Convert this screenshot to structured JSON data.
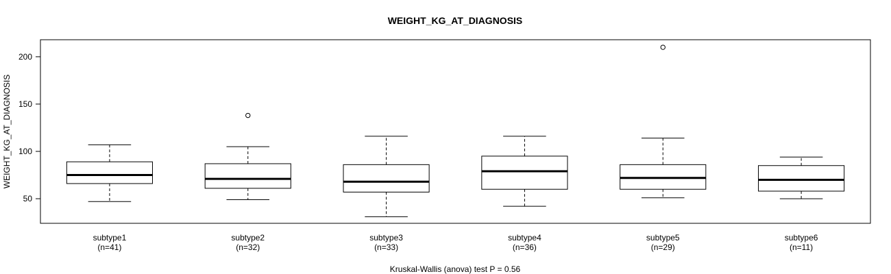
{
  "chart_data": {
    "type": "boxplot",
    "title": "WEIGHT_KG_AT_DIAGNOSIS",
    "ylabel": "WEIGHT_KG_AT_DIAGNOSIS",
    "xlabel": "Kruskal-Wallis (anova) test P = 0.56",
    "ylim": [
      24,
      218
    ],
    "yticks": [
      50,
      100,
      150,
      200
    ],
    "grid": false,
    "groups": [
      {
        "category": "subtype1",
        "count_label": "(n=41)",
        "min": 47,
        "q1": 66,
        "median": 75,
        "q3": 89,
        "max": 107,
        "outliers": []
      },
      {
        "category": "subtype2",
        "count_label": "(n=32)",
        "min": 49,
        "q1": 61,
        "median": 71,
        "q3": 87,
        "max": 105,
        "outliers": [
          138
        ]
      },
      {
        "category": "subtype3",
        "count_label": "(n=33)",
        "min": 31,
        "q1": 57,
        "median": 68,
        "q3": 86,
        "max": 116,
        "outliers": []
      },
      {
        "category": "subtype4",
        "count_label": "(n=36)",
        "min": 42,
        "q1": 60,
        "median": 79,
        "q3": 95,
        "max": 116,
        "outliers": []
      },
      {
        "category": "subtype5",
        "count_label": "(n=29)",
        "min": 51,
        "q1": 60,
        "median": 72,
        "q3": 86,
        "max": 114,
        "outliers": [
          210
        ]
      },
      {
        "category": "subtype6",
        "count_label": "(n=11)",
        "min": 50,
        "q1": 58,
        "median": 70,
        "q3": 85,
        "max": 94,
        "outliers": []
      }
    ]
  }
}
